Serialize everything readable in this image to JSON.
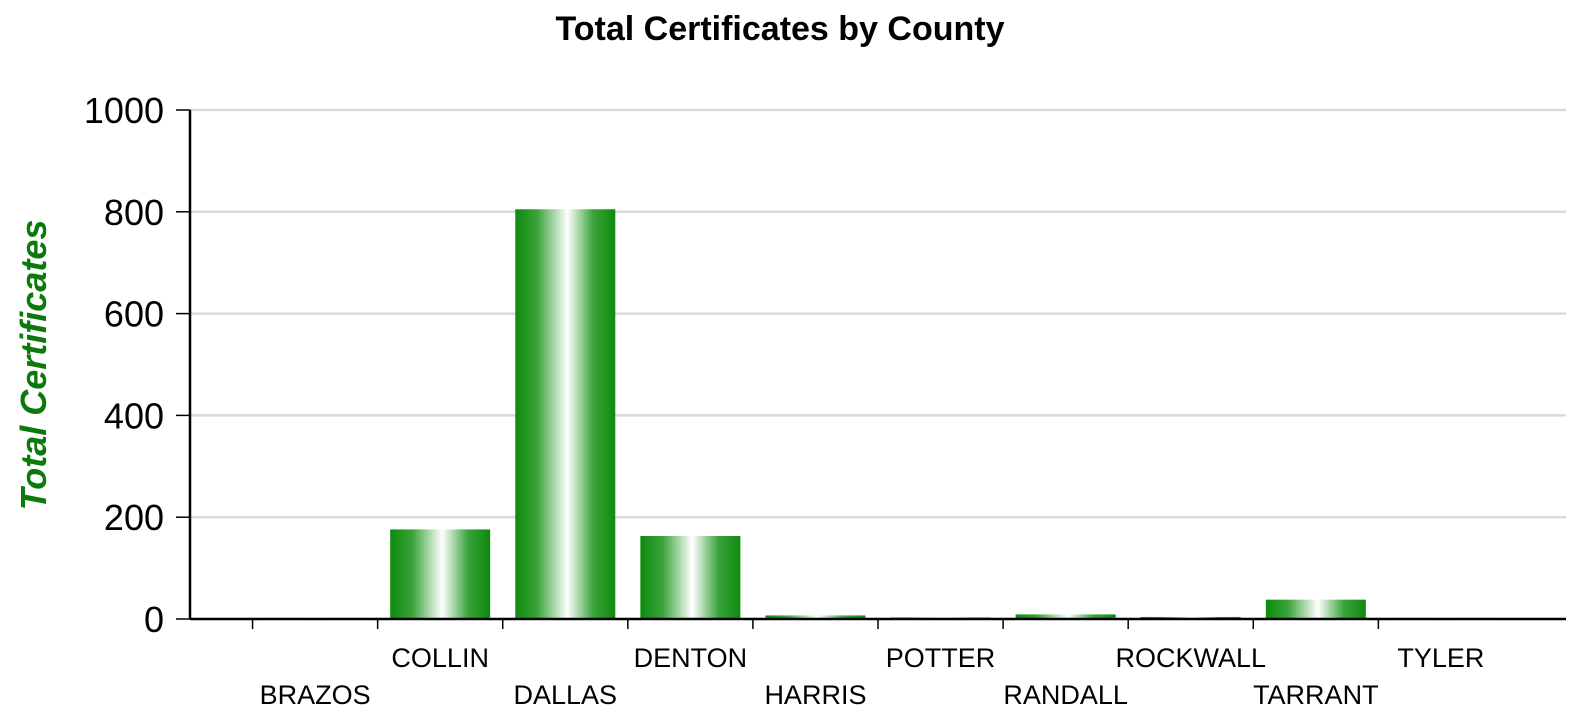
{
  "chart_data": {
    "type": "bar",
    "title": "Total Certificates by County",
    "xlabel": "",
    "ylabel": "Total Certificates",
    "ylim": [
      0,
      1000
    ],
    "yticks": [
      0,
      200,
      400,
      600,
      800,
      1000
    ],
    "grid": true,
    "legend": "none",
    "categories": [
      "BRAZOS",
      "COLLIN",
      "DALLAS",
      "DENTON",
      "HARRIS",
      "POTTER",
      "RANDALL",
      "ROCKWALL",
      "TARRANT",
      "TYLER"
    ],
    "values": [
      2,
      176,
      805,
      163,
      7,
      3,
      9,
      4,
      38,
      2
    ],
    "colors": {
      "bar_dark": "#0d8a0d",
      "bar_light": "#ffffff",
      "ylabel": "#0a7a0a",
      "grid": "#d9d9d9"
    }
  }
}
